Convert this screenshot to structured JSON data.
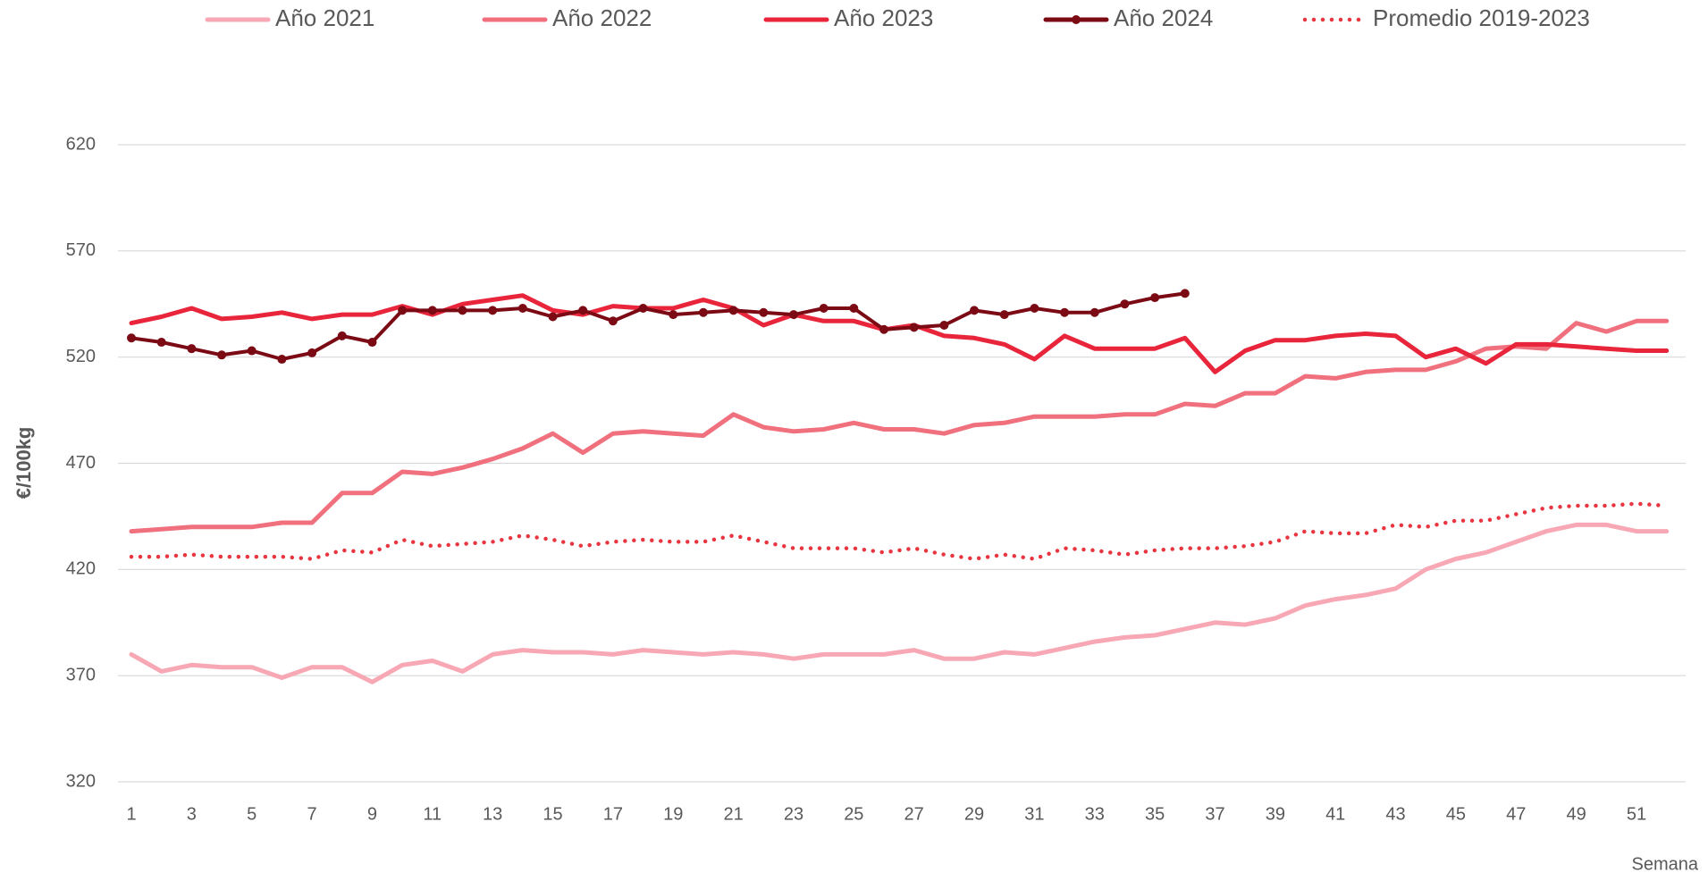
{
  "chart_data": {
    "type": "line",
    "y_label": "€/100kg",
    "x_label": "Semana",
    "categories": [
      1,
      null,
      3,
      null,
      5,
      null,
      7,
      null,
      9,
      null,
      11,
      null,
      13,
      null,
      15,
      null,
      17,
      null,
      19,
      null,
      21,
      null,
      23,
      null,
      25,
      null,
      27,
      null,
      29,
      null,
      31,
      null,
      33,
      null,
      35,
      null,
      37,
      null,
      39,
      null,
      41,
      null,
      43,
      null,
      45,
      null,
      47,
      null,
      49,
      null,
      51,
      null
    ],
    "ylim": [
      320,
      620
    ],
    "yticks": [
      320,
      370,
      420,
      470,
      520,
      570,
      620
    ],
    "grid": true,
    "legend": "top",
    "series": [
      {
        "name": "Año 2021",
        "color": "#f7a8b4",
        "values": [
          380,
          372,
          375,
          374,
          374,
          369,
          374,
          374,
          367,
          375,
          377,
          372,
          380,
          382,
          381,
          381,
          380,
          382,
          381,
          380,
          381,
          380,
          378,
          380,
          380,
          380,
          382,
          378,
          378,
          381,
          380,
          383,
          386,
          388,
          389,
          392,
          395,
          394,
          397,
          403,
          406,
          408,
          411,
          420,
          425,
          428,
          433,
          438,
          441,
          441,
          438,
          438
        ]
      },
      {
        "name": "Año 2022",
        "color": "#f0707e",
        "values": [
          438,
          439,
          440,
          440,
          440,
          442,
          442,
          456,
          456,
          466,
          465,
          468,
          472,
          477,
          484,
          475,
          484,
          485,
          484,
          483,
          493,
          487,
          485,
          486,
          489,
          486,
          486,
          484,
          488,
          489,
          492,
          492,
          492,
          493,
          493,
          498,
          497,
          503,
          503,
          511,
          510,
          513,
          514,
          514,
          518,
          524,
          525,
          524,
          536,
          532,
          537,
          537
        ]
      },
      {
        "name": "Año 2023",
        "color": "#e8253a",
        "values": [
          536,
          539,
          543,
          538,
          539,
          541,
          538,
          540,
          540,
          544,
          540,
          545,
          547,
          549,
          542,
          540,
          544,
          543,
          543,
          547,
          543,
          535,
          540,
          537,
          537,
          533,
          535,
          530,
          529,
          526,
          519,
          530,
          524,
          524,
          524,
          529,
          513,
          523,
          528,
          528,
          530,
          531,
          530,
          520,
          524,
          517,
          526,
          526,
          525,
          524,
          523,
          523
        ]
      },
      {
        "name": "Año 2024",
        "color": "#7b0a14",
        "markers": true,
        "values": [
          529,
          527,
          524,
          521,
          523,
          519,
          522,
          530,
          527,
          542,
          542,
          542,
          542,
          543,
          539,
          542,
          537,
          543,
          540,
          541,
          542,
          541,
          540,
          543,
          543,
          533,
          534,
          535,
          542,
          540,
          543,
          541,
          541,
          545,
          548,
          550,
          null,
          null,
          null,
          null,
          null,
          null,
          null,
          null,
          null,
          null,
          null,
          null,
          null,
          null,
          null,
          null
        ]
      },
      {
        "name": "Promedio 2019-2023",
        "color": "#e8353f",
        "dotted": true,
        "values": [
          426,
          426,
          427,
          426,
          426,
          426,
          425,
          429,
          428,
          434,
          431,
          432,
          433,
          436,
          434,
          431,
          433,
          434,
          433,
          433,
          436,
          433,
          430,
          430,
          430,
          428,
          430,
          427,
          425,
          427,
          425,
          430,
          429,
          427,
          429,
          430,
          430,
          431,
          433,
          438,
          437,
          437,
          441,
          440,
          443,
          443,
          446,
          449,
          450,
          450,
          451,
          450
        ]
      }
    ]
  }
}
